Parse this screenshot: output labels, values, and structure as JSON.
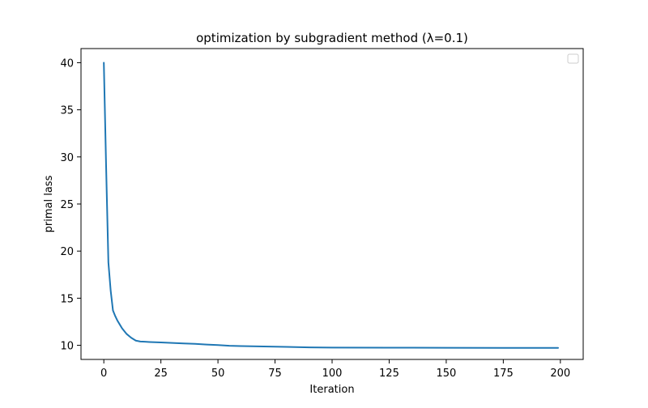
{
  "chart_data": {
    "type": "line",
    "title": "optimization by subgradient method (λ=0.1)",
    "xlabel": "Iteration",
    "ylabel": "primal lass",
    "xlim": [
      -10,
      210
    ],
    "ylim": [
      8.5,
      41.5
    ],
    "xticks": [
      0,
      25,
      50,
      75,
      100,
      125,
      150,
      175,
      200
    ],
    "yticks": [
      10,
      15,
      20,
      25,
      30,
      35,
      40
    ],
    "grid": false,
    "legend": "top-right",
    "line_color": "#1f77b4",
    "series": [
      {
        "x": [
          0,
          1,
          2,
          3,
          4,
          5,
          6,
          7,
          8,
          9,
          10,
          12,
          14,
          16,
          18,
          20,
          25,
          30,
          35,
          40,
          45,
          50,
          55,
          60,
          70,
          80,
          90,
          100,
          125,
          150,
          175,
          199
        ],
        "values": [
          40.0,
          29.0,
          18.8,
          15.8,
          13.7,
          13.1,
          12.6,
          12.2,
          11.8,
          11.5,
          11.2,
          10.8,
          10.5,
          10.4,
          10.38,
          10.35,
          10.3,
          10.25,
          10.2,
          10.15,
          10.08,
          10.02,
          9.95,
          9.92,
          9.87,
          9.83,
          9.78,
          9.76,
          9.75,
          9.74,
          9.73,
          9.72
        ]
      }
    ]
  }
}
